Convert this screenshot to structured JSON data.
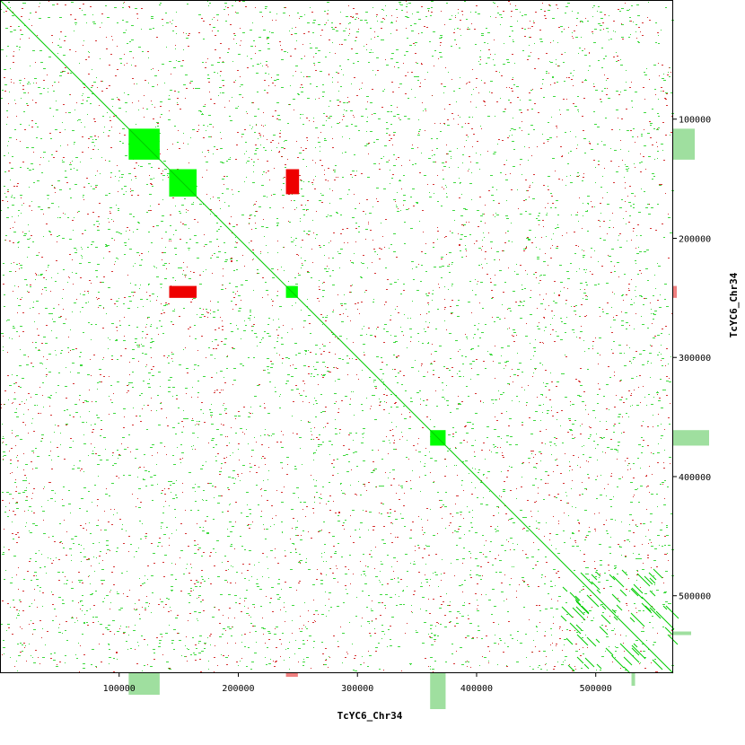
{
  "chart_data": {
    "type": "scatter",
    "title": "",
    "xlabel": "TcYC6_Chr34",
    "ylabel": "TcYC6_Chr34",
    "xlim": [
      0,
      565000
    ],
    "ylim": [
      0,
      565000
    ],
    "x_ticks": [
      100000,
      200000,
      300000,
      400000,
      500000
    ],
    "x_tick_labels": [
      "100000",
      "200000",
      "300000",
      "400000",
      "500000"
    ],
    "y_ticks": [
      100000,
      200000,
      300000,
      400000,
      500000
    ],
    "y_tick_labels": [
      "100000",
      "200000",
      "300000",
      "400000",
      "500000"
    ],
    "grid": false,
    "legend": "none",
    "colors": {
      "forward": "#00cc00",
      "reverse": "#cc0000",
      "block": "#00ff00",
      "reverse_block": "#ee0000",
      "histogram": "#9fdf9f",
      "histogram_reverse": "#f08080"
    },
    "diagonal": [
      [
        0,
        0
      ],
      [
        565000,
        565000
      ]
    ],
    "forward_blocks": [
      {
        "x": [
          108000,
          134000
        ],
        "y": [
          108000,
          134000
        ]
      },
      {
        "x": [
          142000,
          165000
        ],
        "y": [
          142000,
          165000
        ]
      },
      {
        "x": [
          240000,
          250000
        ],
        "y": [
          240000,
          250000
        ]
      },
      {
        "x": [
          361000,
          374000
        ],
        "y": [
          361000,
          374000
        ]
      }
    ],
    "reverse_blocks": [
      {
        "x": [
          142000,
          165000
        ],
        "y": [
          240000,
          250000
        ]
      },
      {
        "x": [
          240000,
          251000
        ],
        "y": [
          142000,
          163000
        ]
      }
    ],
    "histogram_x": [
      {
        "x": [
          108000,
          134000
        ],
        "value": 0.6
      },
      {
        "x": [
          361000,
          374000
        ],
        "value": 1.0
      },
      {
        "x": [
          530000,
          533000
        ],
        "value": 0.35
      },
      {
        "x": [
          240000,
          250000
        ],
        "value": 0.1,
        "reverse": true
      }
    ],
    "histogram_y": [
      {
        "y": [
          108000,
          134000
        ],
        "value": 0.6
      },
      {
        "y": [
          361000,
          374000
        ],
        "value": 1.0
      },
      {
        "y": [
          530000,
          533000
        ],
        "value": 0.5
      },
      {
        "y": [
          240000,
          250000
        ],
        "value": 0.1,
        "reverse": true
      }
    ]
  }
}
